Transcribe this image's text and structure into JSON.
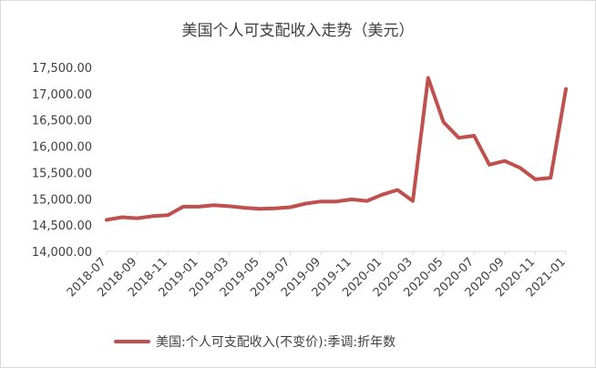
{
  "chart_data": {
    "type": "line",
    "title": "美国个人可支配收入走势（美元）",
    "xlabel": "",
    "ylabel": "",
    "ylim": [
      14000,
      17500
    ],
    "yticks": [
      "14,000.00",
      "14,500.00",
      "15,000.00",
      "15,500.00",
      "16,000.00",
      "16,500.00",
      "17,000.00",
      "17,500.00"
    ],
    "grid": false,
    "legend_position": "bottom",
    "colors": {
      "line": "#c0504d"
    },
    "x": [
      "2018-07",
      "2018-08",
      "2018-09",
      "2018-10",
      "2018-11",
      "2018-12",
      "2019-01",
      "2019-02",
      "2019-03",
      "2019-04",
      "2019-05",
      "2019-06",
      "2019-07",
      "2019-08",
      "2019-09",
      "2019-10",
      "2019-11",
      "2019-12",
      "2020-01",
      "2020-02",
      "2020-03",
      "2020-04",
      "2020-05",
      "2020-06",
      "2020-07",
      "2020-08",
      "2020-09",
      "2020-10",
      "2020-11",
      "2020-12",
      "2021-01"
    ],
    "xtick_labels": [
      "2018-07",
      "2018-09",
      "2018-11",
      "2019-01",
      "2019-03",
      "2019-05",
      "2019-07",
      "2019-09",
      "2019-11",
      "2020-01",
      "2020-03",
      "2020-05",
      "2020-07",
      "2020-09",
      "2020-11",
      "2021-01"
    ],
    "series": [
      {
        "name": "美国:个人可支配收入(不变价):季调:折年数",
        "values": [
          14600,
          14650,
          14630,
          14670,
          14690,
          14850,
          14850,
          14880,
          14860,
          14830,
          14810,
          14820,
          14840,
          14910,
          14950,
          14950,
          14990,
          14960,
          15080,
          15170,
          14960,
          17300,
          16460,
          16160,
          16200,
          15650,
          15720,
          15590,
          15370,
          15400,
          17090
        ]
      }
    ]
  }
}
